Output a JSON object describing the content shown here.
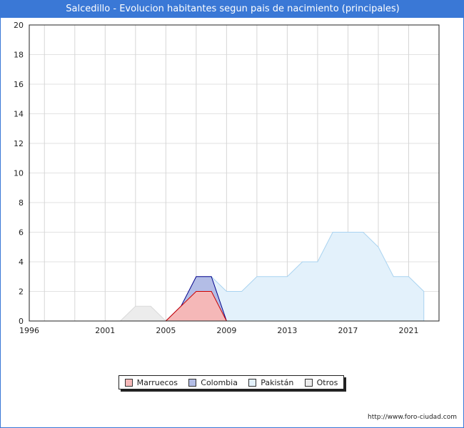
{
  "title": "Salcedillo - Evolucion habitantes segun pais de nacimiento (principales)",
  "footer_url": "http://www.foro-ciudad.com",
  "colors": {
    "title_bar": "#3a78d6",
    "Marruecos": {
      "fill": "#f5b8b8",
      "stroke": "#cc0000"
    },
    "Colombia": {
      "fill": "#b3bde6",
      "stroke": "#00008b"
    },
    "Pakistán": {
      "fill": "#e3f1fb",
      "stroke": "#a9d3f0"
    },
    "Otros": {
      "fill": "#ececec",
      "stroke": "#d9d9d9"
    }
  },
  "chart_data": {
    "type": "area",
    "title": "Salcedillo - Evolucion habitantes segun pais de nacimiento (principales)",
    "xlabel": "",
    "ylabel": "",
    "xlim": [
      1996,
      2023
    ],
    "ylim": [
      0,
      20
    ],
    "x_ticks": [
      1996,
      2001,
      2005,
      2009,
      2013,
      2017,
      2021
    ],
    "y_ticks": [
      0,
      2,
      4,
      6,
      8,
      10,
      12,
      14,
      16,
      18,
      20
    ],
    "grid": true,
    "legend_position": "bottom-center",
    "series": [
      {
        "name": "Otros",
        "x": [
          2002,
          2003,
          2004,
          2005
        ],
        "values": [
          0,
          1,
          1,
          0
        ]
      },
      {
        "name": "Pakistán",
        "x": [
          2008,
          2009,
          2010,
          2011,
          2012,
          2013,
          2014,
          2015,
          2016,
          2017,
          2018,
          2019,
          2020,
          2021,
          2022
        ],
        "values": [
          3,
          2,
          2,
          3,
          3,
          3,
          4,
          4,
          6,
          6,
          6,
          5,
          3,
          3,
          2
        ]
      },
      {
        "name": "Colombia",
        "x": [
          2005,
          2006,
          2007,
          2008,
          2009
        ],
        "values": [
          0,
          1,
          3,
          3,
          0
        ]
      },
      {
        "name": "Marruecos",
        "x": [
          2005,
          2006,
          2007,
          2008,
          2009
        ],
        "values": [
          0,
          1,
          2,
          2,
          0
        ]
      }
    ]
  }
}
